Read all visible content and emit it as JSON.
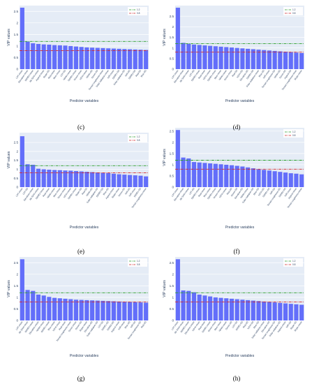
{
  "figure": {
    "panel_labels": [
      "(c)",
      "(d)",
      "(e)",
      "(f)",
      "(g)",
      "(h)"
    ]
  },
  "chart_data": [
    {
      "type": "bar",
      "ylabel": "VIP values",
      "xlabel": "Predictor variables",
      "ylim": [
        0,
        2.75
      ],
      "yticks": [
        0,
        0.5,
        1,
        1.5,
        2,
        2.5
      ],
      "legend": [
        {
          "name": "1.2",
          "color": "#2ca02c",
          "value": 1.2
        },
        {
          "name": "0.8",
          "color": "#d62728",
          "value": 0.8
        }
      ],
      "legend_position": "top-right",
      "bar_color": "#636efa",
      "categories": [
        "LST-mean",
        "Elevation-mean",
        "SWIR2-mean",
        "IBI SAVI-mean",
        "Aspect-mean",
        "Slope-SD",
        "Red-mean",
        "Blue-mean",
        "LST-SD",
        "NDWI-mean",
        "SWIR1-mean",
        "Green-mean",
        "NDVI-mean",
        "NDWI-SD",
        "Green-SD",
        "Terrain roughness-mean",
        "Solar radiation-mean",
        "NIR-mean",
        "SWIR1-SD",
        "Solar radiation-SD",
        "NIR-SD",
        "SWIR2-SD",
        "Red-SD",
        "Blue-SD"
      ],
      "values": [
        2.66,
        1.19,
        1.12,
        1.09,
        1.07,
        1.06,
        1.04,
        1.03,
        1.02,
        1.0,
        0.98,
        0.96,
        0.94,
        0.93,
        0.92,
        0.91,
        0.9,
        0.89,
        0.88,
        0.87,
        0.86,
        0.85,
        0.84,
        0.83
      ]
    },
    {
      "type": "bar",
      "ylabel": "VIP values",
      "xlabel": "Predictor variables",
      "ylim": [
        0,
        3.0
      ],
      "yticks": [
        0,
        0.5,
        1,
        1.5,
        2,
        2.5
      ],
      "legend": [
        {
          "name": "1.2",
          "color": "#2ca02c",
          "value": 1.2
        },
        {
          "name": "0.8",
          "color": "#d62728",
          "value": 0.8
        }
      ],
      "legend_position": "top-right",
      "bar_color": "#636efa",
      "categories": [
        "LST-mean",
        "Elevation-mean",
        "IBI SAVI-mean",
        "LST-SD",
        "SWIR2-mean",
        "Red-mean",
        "NDVI-mean",
        "SWIR1-mean",
        "Blue-mean",
        "NDWI-mean",
        "Green-mean",
        "Red-SD",
        "NDVI-SD",
        "Elevation-SD",
        "SWIR1-SD",
        "Solar radiation-mean",
        "Blue-SD",
        "NIR-mean",
        "Terrain roughness-SD",
        "NDWI-SD",
        "Green-SD",
        "Aspect-SD",
        "Terrain roughness-mean",
        "Slope-mean"
      ],
      "values": [
        2.9,
        1.24,
        1.2,
        1.16,
        1.14,
        1.12,
        1.1,
        1.08,
        1.06,
        1.04,
        1.02,
        1.0,
        0.98,
        0.96,
        0.94,
        0.92,
        0.9,
        0.88,
        0.86,
        0.84,
        0.82,
        0.8,
        0.78,
        0.76
      ]
    },
    {
      "type": "bar",
      "ylabel": "VIP values",
      "xlabel": "Predictor variables",
      "ylim": [
        0,
        3.05
      ],
      "yticks": [
        0,
        0.5,
        1,
        1.5,
        2,
        2.5
      ],
      "legend": [
        {
          "name": "1.2",
          "color": "#2ca02c",
          "value": 1.2
        },
        {
          "name": "0.8",
          "color": "#d62728",
          "value": 0.8
        }
      ],
      "legend_position": "top-right",
      "bar_color": "#636efa",
      "categories": [
        "LST-mean",
        "LST-SD",
        "Elevation-mean",
        "IBI SAVI-mean",
        "SWIR2-mean",
        "Red-mean",
        "NDWI-mean",
        "Blue-mean",
        "Green-mean",
        "NDVI-mean",
        "SWIR1-mean",
        "Slope-SD",
        "Red-SD",
        "NDWI-SD",
        "Solar radiation-SD",
        "SWIR2-SD",
        "Blue-SD",
        "Aspect-mean",
        "Slope-mean",
        "Green-SD",
        "NIR-SD",
        "NIR-mean",
        "SWIR1-SD",
        "Terrain roughness-mean"
      ],
      "values": [
        2.85,
        1.28,
        1.25,
        1.03,
        1.0,
        0.98,
        0.96,
        0.95,
        0.93,
        0.92,
        0.9,
        0.88,
        0.86,
        0.84,
        0.82,
        0.8,
        0.78,
        0.75,
        0.72,
        0.7,
        0.68,
        0.66,
        0.64,
        0.6
      ]
    },
    {
      "type": "bar",
      "ylabel": "VIP values",
      "xlabel": "Predictor variables",
      "ylim": [
        0,
        2.65
      ],
      "yticks": [
        0,
        0.5,
        1,
        1.5,
        2,
        2.5
      ],
      "legend": [
        {
          "name": "1.2",
          "color": "#2ca02c",
          "value": 1.2
        },
        {
          "name": "0.8",
          "color": "#d62728",
          "value": 0.8
        }
      ],
      "legend_position": "top-right",
      "bar_color": "#636efa",
      "categories": [
        "LST-mean",
        "Elevation-mean",
        "IBI SAVI-mean",
        "LST-SD",
        "SWIR2-mean",
        "Red-mean",
        "Blue-mean",
        "SWIR1-mean",
        "Green-mean",
        "NDVI-mean",
        "Red-SD",
        "Green-SD",
        "Elevation-SD",
        "NDWI-mean",
        "Solar radiation-SD",
        "Blue-SD",
        "NDVI-SD",
        "SWIR1-SD",
        "NIR-SD",
        "Terrain roughness-SD",
        "SWIR2-SD",
        "NIR-mean",
        "Aspect-mean",
        "Terrain roughness-mean"
      ],
      "values": [
        2.55,
        1.32,
        1.28,
        1.12,
        1.1,
        1.08,
        1.06,
        1.04,
        1.02,
        1.0,
        0.98,
        0.95,
        0.92,
        0.88,
        0.84,
        0.8,
        0.77,
        0.74,
        0.71,
        0.68,
        0.65,
        0.62,
        0.6,
        0.57
      ]
    },
    {
      "type": "bar",
      "ylabel": "VIP values",
      "xlabel": "Predictor variables",
      "ylim": [
        0,
        2.75
      ],
      "yticks": [
        0,
        0.5,
        1,
        1.5,
        2,
        2.5
      ],
      "legend": [
        {
          "name": "1.2",
          "color": "#2ca02c",
          "value": 1.2
        },
        {
          "name": "0.8",
          "color": "#d62728",
          "value": 0.8
        }
      ],
      "legend_position": "top-right",
      "bar_color": "#636efa",
      "categories": [
        "LST-mean",
        "IBI SAVI-mean",
        "SWIR2-mean",
        "Elevation-mean",
        "NDWI-mean",
        "SWIR1-mean",
        "Blue-mean",
        "NDVI-mean",
        "Red-mean",
        "Terrain roughness-mean",
        "Green-mean",
        "Green-SD",
        "Slope-mean",
        "Elevation-SD",
        "Solar radiation-SD",
        "LST-SD",
        "SWIR1-SD",
        "SWIR2-SD",
        "Aspect-mean",
        "NIR-mean",
        "Blue-SD",
        "NIR-SD",
        "Terrain roughness-SD",
        "Red-SD"
      ],
      "values": [
        2.65,
        1.32,
        1.28,
        1.12,
        1.08,
        1.02,
        0.98,
        0.96,
        0.94,
        0.92,
        0.9,
        0.89,
        0.88,
        0.87,
        0.86,
        0.85,
        0.84,
        0.83,
        0.82,
        0.81,
        0.8,
        0.79,
        0.78,
        0.77
      ]
    },
    {
      "type": "bar",
      "ylabel": "VIP values",
      "xlabel": "Predictor variables",
      "ylim": [
        0,
        2.75
      ],
      "yticks": [
        0,
        0.5,
        1,
        1.5,
        2,
        2.5
      ],
      "legend": [
        {
          "name": "1.2",
          "color": "#2ca02c",
          "value": 1.2
        },
        {
          "name": "0.8",
          "color": "#d62728",
          "value": 0.8
        }
      ],
      "legend_position": "top-right",
      "bar_color": "#636efa",
      "categories": [
        "LST-mean",
        "IBI SAVI-mean",
        "SWIR2-mean",
        "Elevation-mean",
        "NDVI-mean",
        "Red-mean",
        "SWIR1-mean",
        "Green-mean",
        "Blue-mean",
        "NDWI-mean",
        "Green-SD",
        "LST-SD",
        "SWIR1-SD",
        "Red-SD",
        "NDVI-SD",
        "Blue-SD",
        "Solar radiation-mean",
        "Elevation-SD",
        "Terrain roughness-SD",
        "Solar radiation-SD",
        "Aspect-mean",
        "NIR-SD",
        "Slope-SD",
        "Slope-mean"
      ],
      "values": [
        2.65,
        1.3,
        1.28,
        1.22,
        1.12,
        1.08,
        1.04,
        1.0,
        0.98,
        0.96,
        0.94,
        0.92,
        0.9,
        0.88,
        0.86,
        0.84,
        0.82,
        0.8,
        0.78,
        0.76,
        0.74,
        0.72,
        0.7,
        0.68
      ]
    }
  ]
}
